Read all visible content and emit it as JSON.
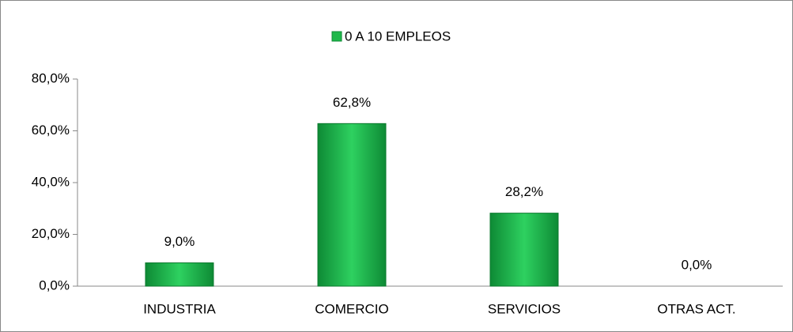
{
  "chart_data": {
    "type": "bar",
    "legend": "0 A 10 EMPLEOS",
    "categories": [
      "INDUSTRIA",
      "COMERCIO",
      "SERVICIOS",
      "OTRAS ACT."
    ],
    "values": [
      9.0,
      62.8,
      28.2,
      0.0
    ],
    "value_labels": [
      "9,0%",
      "62,8%",
      "28,2%",
      "0,0%"
    ],
    "color": "#1fb84a",
    "ylim": [
      0,
      80
    ],
    "yticks": [
      {
        "value": 0,
        "label": "0,0%"
      },
      {
        "value": 20,
        "label": "20,0%"
      },
      {
        "value": 40,
        "label": "40,0%"
      },
      {
        "value": 60,
        "label": "60,0%"
      },
      {
        "value": 80,
        "label": "80,0%"
      }
    ],
    "grid": false
  }
}
